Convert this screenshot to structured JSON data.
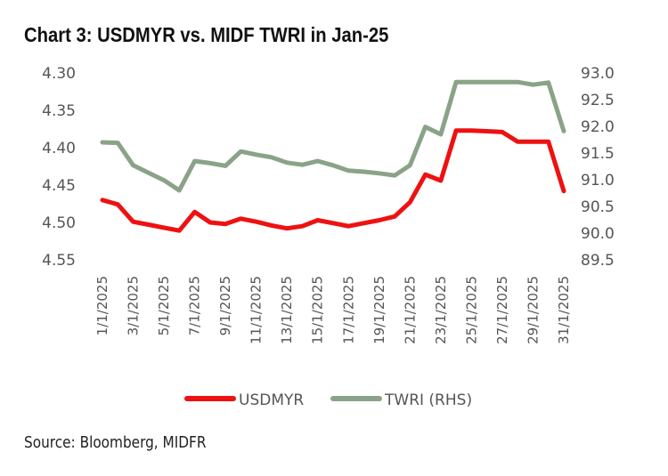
{
  "title": "Chart 3: USDMYR vs. MIDF TWRI in Jan-25",
  "source": "Source: Bloomberg, MIDFR",
  "chart_data": {
    "type": "line",
    "title": "Chart 3: USDMYR vs. MIDF TWRI in Jan-25",
    "x": [
      "1/1/2025",
      "2/1/2025",
      "3/1/2025",
      "4/1/2025",
      "5/1/2025",
      "6/1/2025",
      "7/1/2025",
      "8/1/2025",
      "9/1/2025",
      "10/1/2025",
      "11/1/2025",
      "12/1/2025",
      "13/1/2025",
      "14/1/2025",
      "15/1/2025",
      "16/1/2025",
      "17/1/2025",
      "18/1/2025",
      "19/1/2025",
      "20/1/2025",
      "21/1/2025",
      "22/1/2025",
      "23/1/2025",
      "24/1/2025",
      "25/1/2025",
      "26/1/2025",
      "27/1/2025",
      "28/1/2025",
      "29/1/2025",
      "30/1/2025",
      "31/1/2025"
    ],
    "x_tick_labels": [
      "1/1/2025",
      "3/1/2025",
      "5/1/2025",
      "7/1/2025",
      "9/1/2025",
      "11/1/2025",
      "13/1/2025",
      "15/1/2025",
      "17/1/2025",
      "19/1/2025",
      "21/1/2025",
      "23/1/2025",
      "25/1/2025",
      "27/1/2025",
      "29/1/2025",
      "31/1/2025"
    ],
    "y_left": {
      "range": [
        4.3,
        4.55
      ],
      "inverted": true,
      "ticks": [
        "4.30",
        "4.35",
        "4.40",
        "4.45",
        "4.50",
        "4.55"
      ]
    },
    "y_right": {
      "range": [
        89.5,
        93.0
      ],
      "ticks": [
        "93.0",
        "92.5",
        "92.0",
        "91.5",
        "91.0",
        "90.5",
        "90.0",
        "89.5"
      ]
    },
    "grid": false,
    "legend_placement": "bottom",
    "series": [
      {
        "name": "USDMYR",
        "axis": "left",
        "color": "#ee1111",
        "values": [
          4.47,
          4.476,
          4.499,
          4.503,
          4.507,
          4.511,
          4.486,
          4.5,
          4.502,
          4.495,
          4.499,
          4.504,
          4.508,
          4.505,
          4.497,
          4.501,
          4.505,
          4.501,
          4.497,
          4.492,
          4.473,
          4.436,
          4.444,
          4.377,
          4.377,
          4.378,
          4.379,
          4.392,
          4.392,
          4.392,
          4.458
        ]
      },
      {
        "name": "TWRI (RHS)",
        "axis": "right",
        "color": "#8aa388",
        "values": [
          91.7,
          91.69,
          91.27,
          91.13,
          90.99,
          90.8,
          91.35,
          91.31,
          91.26,
          91.53,
          91.47,
          91.42,
          91.32,
          91.28,
          91.35,
          91.27,
          91.17,
          91.15,
          91.12,
          91.08,
          91.27,
          91.99,
          91.85,
          92.83,
          92.83,
          92.83,
          92.83,
          92.83,
          92.78,
          92.82,
          91.91
        ]
      }
    ]
  }
}
